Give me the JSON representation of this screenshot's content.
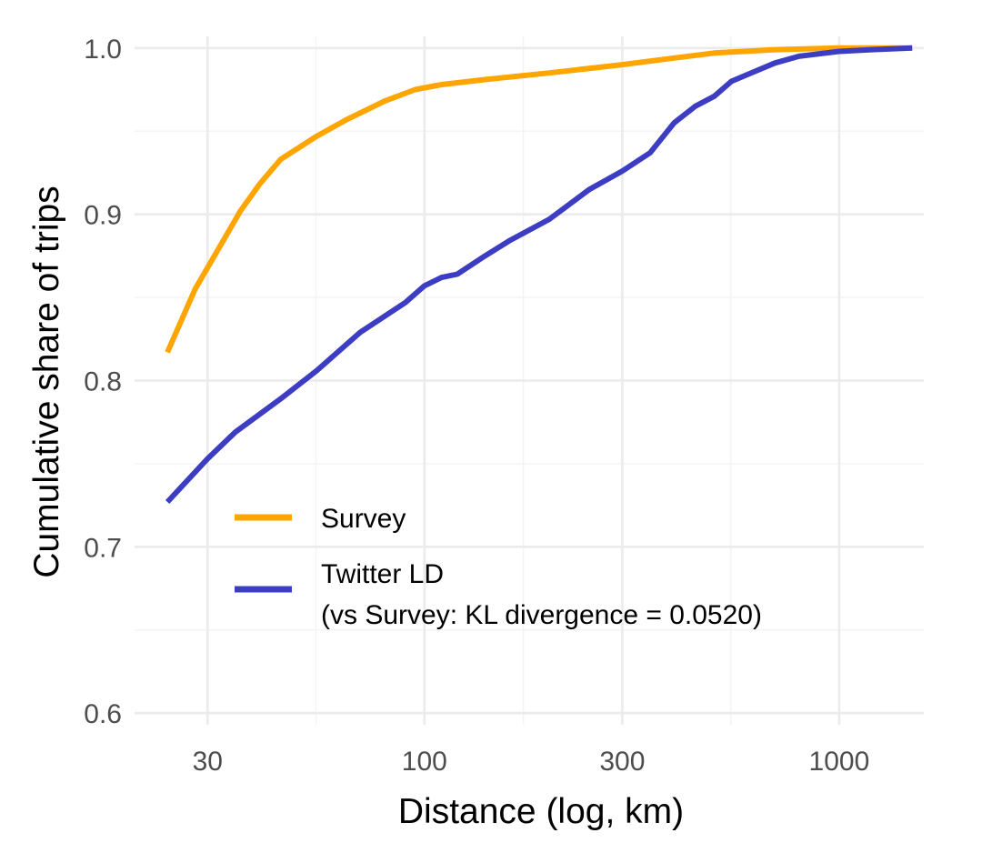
{
  "chart_data": {
    "type": "line",
    "title": "",
    "xlabel": "Distance (log, km)",
    "ylabel": "Cumulative share of trips",
    "x_scale": "log10",
    "xlim": [
      20,
      1600
    ],
    "ylim": [
      0.593,
      1.007
    ],
    "x_ticks": [
      {
        "value": 30,
        "label": "30"
      },
      {
        "value": 100,
        "label": "100"
      },
      {
        "value": 300,
        "label": "300"
      },
      {
        "value": 1000,
        "label": "1000"
      }
    ],
    "y_ticks": [
      {
        "value": 0.6,
        "label": "0.6"
      },
      {
        "value": 0.7,
        "label": "0.7"
      },
      {
        "value": 0.8,
        "label": "0.8"
      },
      {
        "value": 0.9,
        "label": "0.9"
      },
      {
        "value": 1.0,
        "label": "1.0"
      }
    ],
    "grid": true,
    "legend_position": "inside-bottom-left",
    "series": [
      {
        "name": "Survey",
        "color": "#FFA500",
        "x": [
          24,
          28,
          32,
          36,
          40,
          45,
          55,
          65,
          80,
          95,
          110,
          140,
          200,
          300,
          400,
          500,
          700,
          1000,
          1500
        ],
        "y": [
          0.817,
          0.855,
          0.88,
          0.902,
          0.918,
          0.933,
          0.947,
          0.957,
          0.968,
          0.975,
          0.978,
          0.981,
          0.985,
          0.99,
          0.994,
          0.997,
          0.999,
          1.0,
          1.0
        ]
      },
      {
        "name": "Twitter LD",
        "legend_sublabel": "(vs Survey: KL divergence = 0.0520)",
        "color": "#3D3DC4",
        "x": [
          24,
          30,
          35,
          45,
          55,
          70,
          90,
          100,
          110,
          120,
          140,
          160,
          200,
          250,
          300,
          350,
          400,
          450,
          500,
          550,
          600,
          700,
          800,
          1000,
          1200,
          1500
        ],
        "y": [
          0.727,
          0.753,
          0.769,
          0.789,
          0.806,
          0.829,
          0.847,
          0.857,
          0.862,
          0.864,
          0.875,
          0.884,
          0.897,
          0.915,
          0.926,
          0.937,
          0.955,
          0.965,
          0.971,
          0.98,
          0.984,
          0.991,
          0.995,
          0.998,
          0.999,
          1.0
        ]
      }
    ]
  }
}
